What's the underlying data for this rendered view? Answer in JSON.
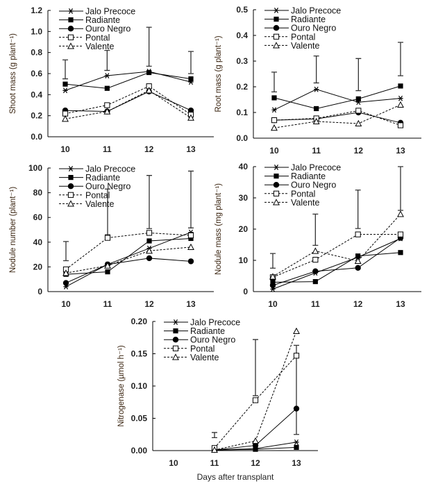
{
  "chart_data": [
    {
      "type": "line",
      "ylabel": "Shoot mass (g plant⁻¹)",
      "xlabel": "",
      "x": [
        10,
        11,
        12,
        13
      ],
      "xtick_labels": [
        "10",
        "11",
        "12",
        "13"
      ],
      "ylim": [
        0,
        1.2
      ],
      "ytick_labels": [
        "0.0",
        "0.2",
        "0.4",
        "0.6",
        "0.8",
        "1.0",
        "1.2"
      ],
      "legend": "top-left",
      "series": [
        {
          "name": "Jalo Precoce",
          "values": [
            0.44,
            0.58,
            0.62,
            0.52
          ]
        },
        {
          "name": "Radiante",
          "values": [
            0.5,
            0.46,
            0.61,
            0.55
          ]
        },
        {
          "name": "Ouro Negro",
          "values": [
            0.25,
            0.24,
            0.43,
            0.25
          ]
        },
        {
          "name": "Pontal",
          "values": [
            0.22,
            0.3,
            0.48,
            0.21
          ]
        },
        {
          "name": "Valente",
          "values": [
            0.17,
            0.24,
            0.44,
            0.18
          ]
        }
      ],
      "error_bars": [
        [
          0.55,
          0.73
        ],
        [
          0.63,
          0.82
        ],
        [
          0.67,
          1.04
        ],
        [
          0.6,
          0.81
        ]
      ]
    },
    {
      "type": "line",
      "ylabel": "Root mass (g plant⁻¹)",
      "xlabel": "",
      "x": [
        10,
        11,
        12,
        13
      ],
      "xtick_labels": [
        "10",
        "11",
        "12",
        "13"
      ],
      "ylim": [
        0,
        0.5
      ],
      "ytick_labels": [
        "0.0",
        "0.1",
        "0.2",
        "0.3",
        "0.4",
        "0.5"
      ],
      "legend": "top-left",
      "series": [
        {
          "name": "Jalo Precoce",
          "values": [
            0.11,
            0.19,
            0.14,
            0.155
          ]
        },
        {
          "name": "Radiante",
          "values": [
            0.157,
            0.115,
            0.153,
            0.203
          ]
        },
        {
          "name": "Ouro Negro",
          "values": [
            0.07,
            0.075,
            0.1,
            0.06
          ]
        },
        {
          "name": "Pontal",
          "values": [
            0.07,
            0.077,
            0.107,
            0.05
          ]
        },
        {
          "name": "Valente",
          "values": [
            0.04,
            0.065,
            0.057,
            0.13
          ]
        }
      ],
      "error_bars": [
        [
          0.18,
          0.257
        ],
        [
          0.215,
          0.32
        ],
        [
          0.185,
          0.31
        ],
        [
          0.243,
          0.373
        ]
      ]
    },
    {
      "type": "line",
      "ylabel": "Nodule number (plant⁻¹)",
      "xlabel": "",
      "x": [
        10,
        11,
        12,
        13
      ],
      "xtick_labels": [
        "10",
        "11",
        "12",
        "13"
      ],
      "ylim": [
        0,
        100
      ],
      "ytick_labels": [
        "0",
        "20",
        "40",
        "60",
        "80",
        "100"
      ],
      "legend": "top-left",
      "series": [
        {
          "name": "Jalo Precoce",
          "values": [
            4,
            22,
            35,
            48
          ]
        },
        {
          "name": "Radiante",
          "values": [
            14,
            16,
            41,
            43
          ]
        },
        {
          "name": "Ouro Negro",
          "values": [
            7,
            22,
            27,
            24.5
          ]
        },
        {
          "name": "Pontal",
          "values": [
            18,
            43.5,
            47.5,
            45.5
          ]
        },
        {
          "name": "Valente",
          "values": [
            15,
            21,
            33,
            36
          ]
        }
      ],
      "error_bars": [
        [
          25,
          40.5
        ],
        [
          46,
          83
        ],
        [
          51,
          94
        ],
        [
          51.5,
          97.5
        ]
      ]
    },
    {
      "type": "line",
      "ylabel": "Nodule mass (mg plant⁻¹)",
      "xlabel": "",
      "x": [
        10,
        11,
        12,
        13
      ],
      "xtick_labels": [
        "10",
        "11",
        "12",
        "13"
      ],
      "ylim": [
        0,
        40
      ],
      "ytick_labels": [
        "0",
        "10",
        "20",
        "30",
        "40"
      ],
      "legend": "top-left",
      "series": [
        {
          "name": "Jalo Precoce",
          "values": [
            0.8,
            6,
            11,
            17
          ]
        },
        {
          "name": "Radiante",
          "values": [
            3,
            3.2,
            11.4,
            12.5
          ]
        },
        {
          "name": "Ouro Negro",
          "values": [
            2,
            6.5,
            7.6,
            17.2
          ]
        },
        {
          "name": "Pontal",
          "values": [
            4.6,
            10.2,
            18.3,
            18.3
          ]
        },
        {
          "name": "Valente",
          "values": [
            4.8,
            13,
            9.8,
            24.8
          ]
        }
      ],
      "error_bars": [
        [
          7.5,
          12.2
        ],
        [
          14.8,
          24.8
        ],
        [
          20.2,
          32.5
        ],
        [
          26,
          40
        ]
      ]
    },
    {
      "type": "line",
      "ylabel": "Nitrogenase (µmol h⁻¹)",
      "xlabel": "Days after transplant",
      "x": [
        10,
        11,
        12,
        13
      ],
      "xtick_labels": [
        "10",
        "11",
        "12",
        "13"
      ],
      "ylim": [
        0,
        0.2
      ],
      "ytick_labels": [
        "0.00",
        "0.05",
        "0.10",
        "0.15",
        "0.20"
      ],
      "legend": "top-left",
      "series": [
        {
          "name": "Jalo Precoce",
          "values": [
            null,
            0.001,
            0.003,
            0.013
          ]
        },
        {
          "name": "Radiante",
          "values": [
            null,
            0.001,
            0.002,
            0.005
          ]
        },
        {
          "name": "Ouro Negro",
          "values": [
            null,
            0.001,
            0.008,
            0.065
          ]
        },
        {
          "name": "Pontal",
          "values": [
            null,
            0.004,
            0.078,
            0.147
          ]
        },
        {
          "name": "Valente",
          "values": [
            null,
            0.001,
            0.015,
            0.185
          ]
        }
      ],
      "error_bars": [
        null,
        [
          0.02,
          0.028
        ],
        [
          0.085,
          0.172
        ],
        [
          0.025,
          0.163
        ]
      ]
    }
  ],
  "series_styles": [
    {
      "marker": "asterisk",
      "line": "solid"
    },
    {
      "marker": "filled-square",
      "line": "solid"
    },
    {
      "marker": "filled-circle",
      "line": "solid"
    },
    {
      "marker": "open-square",
      "line": "dashed"
    },
    {
      "marker": "open-triangle",
      "line": "dashed"
    }
  ],
  "colors": {
    "lines": "#000000",
    "error_bars": "#333333",
    "axis_label": "#3a2410"
  }
}
